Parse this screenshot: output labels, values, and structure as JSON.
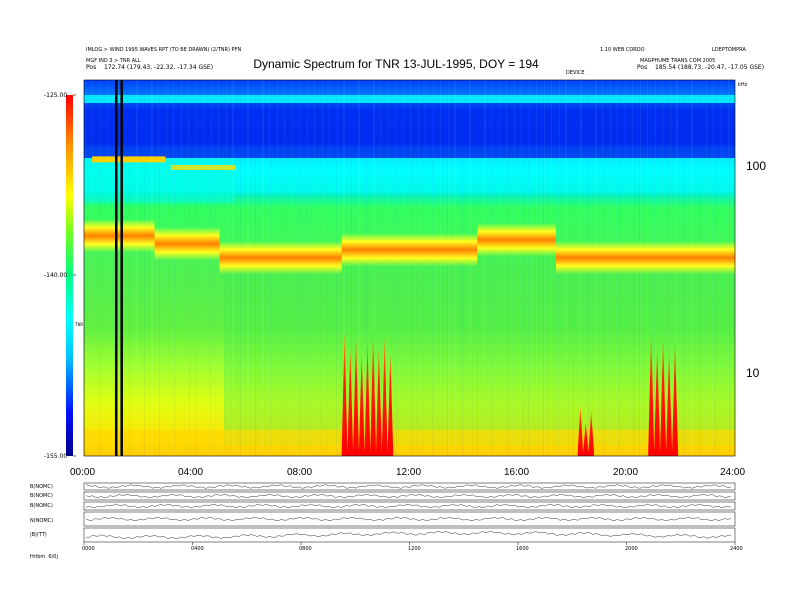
{
  "header": {
    "left_line1": "IMLOG > WIND 1995 WAVES RPT (TO BE DRAWN) (2/TNR) PFN",
    "left_line2": "MGF IND 3 > TNR ALL",
    "left_line3_label": "Pos",
    "left_line3_value": "172.74 (179.43, -22.32, -17.34 GSE)",
    "right_line1": "1.10 WEB CORDO",
    "right_line1b": "LDEPTOMPRA",
    "right_line2": "MAGPHUME TRANS COM 2005",
    "right_line3_label": "Pos",
    "right_line3_value": "185.54 (188.73, -20.47, -17.05 GSE)",
    "center_small": "DEVICE",
    "unit_right": "kHz"
  },
  "chart_data": [
    {
      "type": "heatmap",
      "title": "Dynamic Spectrum for TNR 13-JUL-1995, DOY = 194",
      "xlabel": "",
      "ylabel": "",
      "x_ticks": [
        "00:00",
        "04:00",
        "08:00",
        "12:00",
        "16:00",
        "20:00",
        "24:00"
      ],
      "x_range_hours": [
        0,
        24
      ],
      "y_scale": "log",
      "y_ticks": [
        10,
        100
      ],
      "y_range_khz": [
        4,
        256
      ],
      "colorbar": {
        "ticks": [
          "-125.00",
          "-140.00",
          "-155.00"
        ],
        "range_db": [
          -155,
          -125
        ],
        "label": "TNR",
        "colors": [
          "#00008c",
          "#0010ff",
          "#00c8ff",
          "#00ffff",
          "#00ff80",
          "#60ff30",
          "#ffff00",
          "#ff9000",
          "#ff0000"
        ]
      },
      "data_gaps_hours": [
        1.18,
        1.38
      ],
      "features": [
        {
          "name": "plasma line",
          "x_hours": [
            0,
            24
          ],
          "freq_khz": [
            38,
            55
          ]
        },
        {
          "name": "radio bursts",
          "x_hours": [
            9.5,
            11.4
          ],
          "freq_khz": [
            4.5,
            16
          ]
        },
        {
          "name": "radio bursts",
          "x_hours": [
            18.2,
            18.8
          ],
          "freq_khz": [
            4.5,
            7
          ]
        },
        {
          "name": "radio bursts",
          "x_hours": [
            20.8,
            21.9
          ],
          "freq_khz": [
            4.5,
            16
          ]
        }
      ]
    },
    {
      "type": "line",
      "panels": [
        "B(NOMC)",
        "B(NOMC)",
        "B(NOMC)",
        "N(NOMC)",
        "|B|(TT)"
      ],
      "x_ticks": [
        "0000",
        "0400",
        "0800",
        "1200",
        "1600",
        "2000",
        "2400"
      ],
      "bottom_label": "Hrlbm. 6/0j"
    }
  ]
}
